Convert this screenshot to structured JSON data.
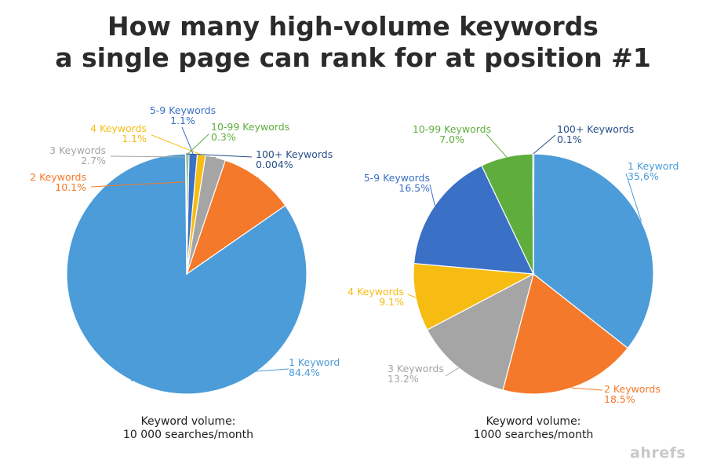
{
  "title": {
    "line1": "How many high-volume keywords",
    "line2": "a single page can rank for at position #1"
  },
  "brand": "ahrefs",
  "chart_data": [
    {
      "type": "pie",
      "caption": [
        "Keyword volume:",
        "10 000 searches/month"
      ],
      "slices": [
        {
          "label": "1 Keyword",
          "value_text": "84.4%",
          "value": 84.4,
          "color": "#4b9cd8"
        },
        {
          "label": "2 Keywords",
          "value_text": "10.1%",
          "value": 10.1,
          "color": "#f4792a"
        },
        {
          "label": "3 Keywords",
          "value_text": "2.7%",
          "value": 2.7,
          "color": "#a5a5a5"
        },
        {
          "label": "4 Keywords",
          "value_text": "1.1%",
          "value": 1.1,
          "color": "#f7bc12"
        },
        {
          "label": "5-9 Keywords",
          "value_text": "1.1%",
          "value": 1.1,
          "color": "#3a70c6"
        },
        {
          "label": "10-99 Keywords",
          "value_text": "0.3%",
          "value": 0.3,
          "color": "#5fae3d"
        },
        {
          "label": "100+ Keywords",
          "value_text": "0.004%",
          "value": 0.004,
          "color": "#264e89"
        }
      ]
    },
    {
      "type": "pie",
      "caption": [
        "Keyword volume:",
        "1000 searches/month"
      ],
      "slices": [
        {
          "label": "1 Keyword",
          "value_text": "35,6%",
          "value": 35.6,
          "color": "#4b9cd8"
        },
        {
          "label": "2 Keywords",
          "value_text": "18.5%",
          "value": 18.5,
          "color": "#f4792a"
        },
        {
          "label": "3 Keywords",
          "value_text": "13.2%",
          "value": 13.2,
          "color": "#a5a5a5"
        },
        {
          "label": "4 Keywords",
          "value_text": "9.1%",
          "value": 9.1,
          "color": "#f7bc12"
        },
        {
          "label": "5-9 Keywords",
          "value_text": "16.5%",
          "value": 16.5,
          "color": "#3a70c6"
        },
        {
          "label": "10-99 Keywords",
          "value_text": "7.0%",
          "value": 7.0,
          "color": "#5fae3d"
        },
        {
          "label": "100+ Keywords",
          "value_text": "0.1%",
          "value": 0.1,
          "color": "#264e89"
        }
      ]
    }
  ]
}
